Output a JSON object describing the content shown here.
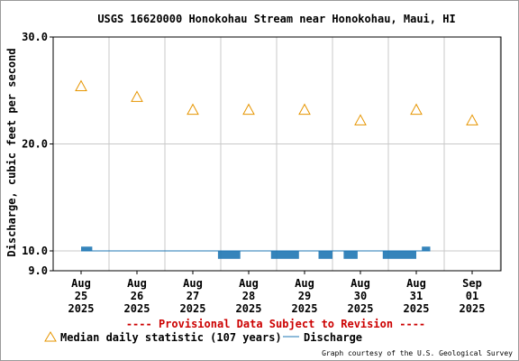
{
  "chart_data": {
    "type": "line",
    "title": "USGS 16620000 Honokohau Stream near Honokohau, Maui, HI",
    "ylabel": "Discharge, cubic feet per second",
    "xlabel": "",
    "ylim": [
      9.0,
      30.0
    ],
    "yticks": [
      "30.0",
      "20.0",
      "10.0",
      "9.0"
    ],
    "ytick_values": [
      30.0,
      20.0,
      10.0,
      9.0
    ],
    "xlim": [
      0,
      7.5
    ],
    "xticks": [
      {
        "x": 0,
        "line1": "Aug",
        "line2": "25",
        "line3": "2025"
      },
      {
        "x": 1,
        "line1": "Aug",
        "line2": "26",
        "line3": "2025"
      },
      {
        "x": 2,
        "line1": "Aug",
        "line2": "27",
        "line3": "2025"
      },
      {
        "x": 3,
        "line1": "Aug",
        "line2": "28",
        "line3": "2025"
      },
      {
        "x": 4,
        "line1": "Aug",
        "line2": "29",
        "line3": "2025"
      },
      {
        "x": 5,
        "line1": "Aug",
        "line2": "30",
        "line3": "2025"
      },
      {
        "x": 6,
        "line1": "Aug",
        "line2": "31",
        "line3": "2025"
      },
      {
        "x": 7,
        "line1": "Sep",
        "line2": "01",
        "line3": "2025"
      }
    ],
    "grid": true,
    "series": [
      {
        "name": "Median daily statistic (107 years)",
        "kind": "triangle-markers",
        "color": "#e69500",
        "points": [
          {
            "x": 0,
            "y": 25.4
          },
          {
            "x": 1,
            "y": 24.4
          },
          {
            "x": 2,
            "y": 23.2
          },
          {
            "x": 3,
            "y": 23.2
          },
          {
            "x": 4,
            "y": 23.2
          },
          {
            "x": 5,
            "y": 22.2
          },
          {
            "x": 6,
            "y": 23.2
          },
          {
            "x": 7,
            "y": 22.2
          }
        ]
      },
      {
        "name": "Discharge",
        "kind": "line",
        "color": "#1f77b4",
        "points": [
          {
            "x": 0.0,
            "y": 10.0
          },
          {
            "x": 1.0,
            "y": 10.0
          },
          {
            "x": 2.0,
            "y": 10.0
          },
          {
            "x": 2.9,
            "y": 10.0
          },
          {
            "x": 3.0,
            "y": 10.0
          },
          {
            "x": 3.9,
            "y": 10.0
          },
          {
            "x": 4.0,
            "y": 10.0
          },
          {
            "x": 5.0,
            "y": 10.0
          },
          {
            "x": 6.0,
            "y": 10.0
          },
          {
            "x": 6.25,
            "y": 10.0
          }
        ],
        "low_bands": [
          {
            "from": 2.45,
            "to": 2.85,
            "low": 9.6
          },
          {
            "from": 3.4,
            "to": 3.9,
            "low": 9.6
          },
          {
            "from": 4.25,
            "to": 4.5,
            "low": 9.6
          },
          {
            "from": 4.7,
            "to": 4.95,
            "low": 9.6
          },
          {
            "from": 5.4,
            "to": 6.0,
            "low": 9.6
          }
        ],
        "high_bands": [
          {
            "from": 0.0,
            "to": 0.2,
            "high": 10.4
          },
          {
            "from": 6.1,
            "to": 6.25,
            "high": 10.4
          }
        ]
      }
    ],
    "legend": {
      "placement": "bottom",
      "median_label": "Median daily statistic (107 years)",
      "discharge_label": "Discharge"
    },
    "annotation": "---- Provisional Data Subject to Revision ----",
    "credit": "Graph courtesy of the U.S. Geological Survey"
  },
  "colors": {
    "median": "#e69500",
    "discharge": "#1f77b4",
    "provisional": "#cc0000",
    "grid": "#c8c8c8",
    "axis": "#000000"
  }
}
